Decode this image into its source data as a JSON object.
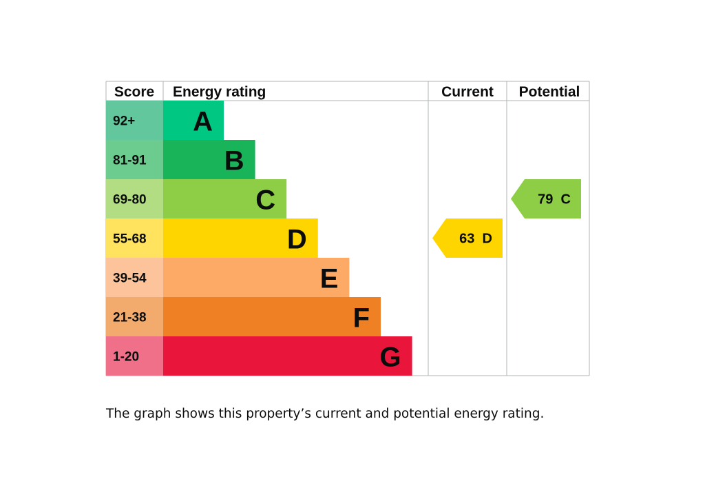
{
  "chart_data": {
    "type": "bar",
    "headers": {
      "score": "Score",
      "rating": "Energy rating",
      "current": "Current",
      "potential": "Potential"
    },
    "bands": [
      {
        "letter": "A",
        "score": "92+",
        "color": "#00c781",
        "score_color": "#63c79d"
      },
      {
        "letter": "B",
        "score": "81-91",
        "color": "#19b459",
        "score_color": "#6ccb8e"
      },
      {
        "letter": "C",
        "score": "69-80",
        "color": "#8dce46",
        "score_color": "#b2dd83"
      },
      {
        "letter": "D",
        "score": "55-68",
        "color": "#ffd500",
        "score_color": "#ffe25e"
      },
      {
        "letter": "E",
        "score": "39-54",
        "color": "#fcaa65",
        "score_color": "#fdc39a"
      },
      {
        "letter": "F",
        "score": "21-38",
        "color": "#ef8023",
        "score_color": "#f3aa6d"
      },
      {
        "letter": "G",
        "score": "1-20",
        "color": "#e9153b",
        "score_color": "#f07089"
      }
    ],
    "current": {
      "score": 63,
      "band": "D",
      "label": "63  D",
      "color": "#ffd500"
    },
    "potential": {
      "score": 79,
      "band": "C",
      "label": "79  C",
      "color": "#8dce46"
    }
  },
  "caption": "The graph shows this property’s current and potential energy rating."
}
